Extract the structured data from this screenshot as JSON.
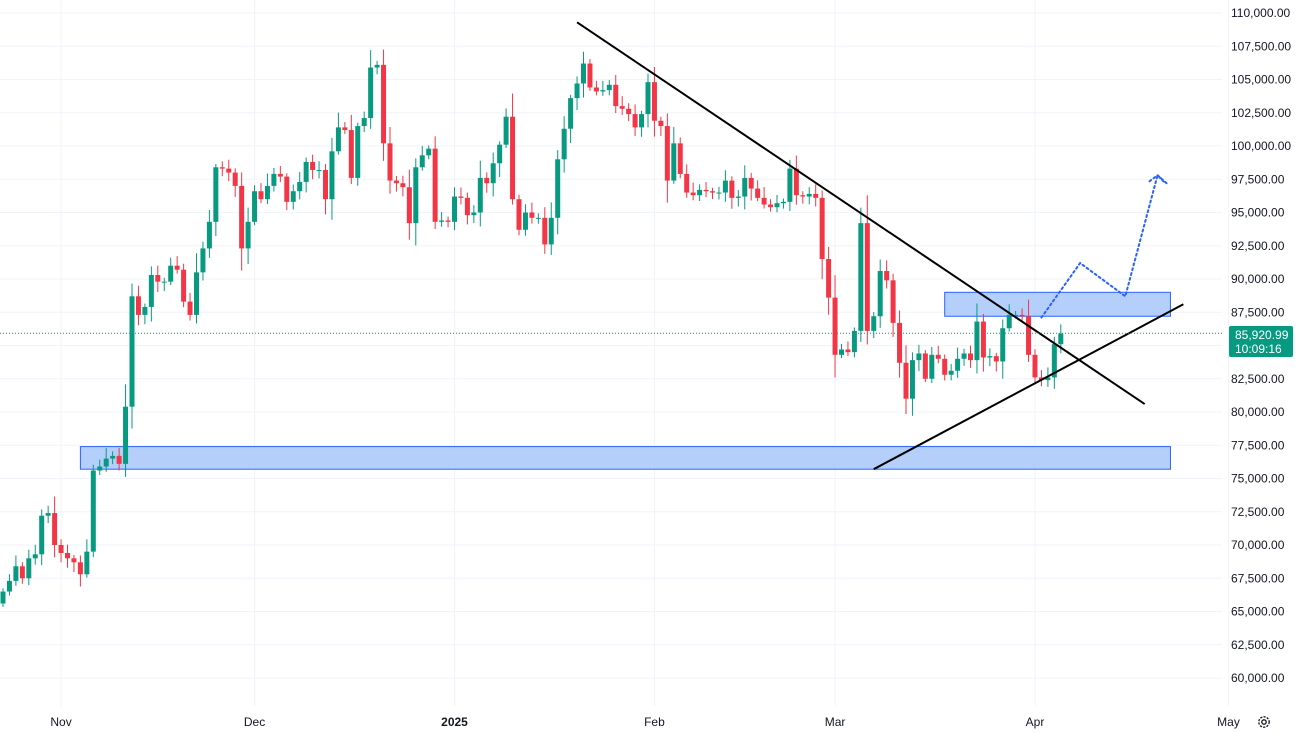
{
  "chart_data": {
    "type": "candlestick",
    "y_range": [
      58500,
      110800
    ],
    "y_ticks": [
      "110,000.00",
      "107,500.00",
      "105,000.00",
      "102,500.00",
      "100,000.00",
      "97,500.00",
      "95,000.00",
      "92,500.00",
      "90,000.00",
      "87,500.00",
      "85,000.00",
      "82,500.00",
      "80,000.00",
      "77,500.00",
      "75,000.00",
      "72,500.00",
      "70,000.00",
      "67,500.00",
      "65,000.00",
      "62,500.00",
      "60,000.00"
    ],
    "x_labels": [
      {
        "label": "Nov",
        "date": "2024-11-01"
      },
      {
        "label": "Dec",
        "date": "2024-12-01"
      },
      {
        "label": "2025",
        "date": "2025-01-01",
        "bold": true
      },
      {
        "label": "Feb",
        "date": "2025-02-01"
      },
      {
        "label": "Mar",
        "date": "2025-03-01"
      },
      {
        "label": "Apr",
        "date": "2025-04-01"
      },
      {
        "label": "May",
        "date": "2025-05-01"
      }
    ],
    "first_date": "2024-10-23",
    "last_price": "85,920.99",
    "countdown": "10:09:16",
    "colors": {
      "up": "#089981",
      "down": "#f23645",
      "zone_fill": "#a8c7fa",
      "zone_border": "#2962ff",
      "line": "#000000",
      "projection": "#2962ff",
      "grid": "#f0f3fa"
    },
    "closes": [
      66500,
      67300,
      68400,
      67500,
      69000,
      69300,
      72200,
      72400,
      70000,
      69400,
      69000,
      68700,
      67800,
      69500,
      75600,
      75900,
      76500,
      76700,
      76100,
      80400,
      88700,
      87300,
      87900,
      90300,
      89800,
      89800,
      91000,
      90700,
      88300,
      87300,
      90500,
      92300,
      94300,
      98400,
      98300,
      98000,
      97000,
      92300,
      94300,
      96600,
      96000,
      97000,
      97900,
      97700,
      95800,
      96600,
      97300,
      98800,
      98200,
      98200,
      96000,
      99600,
      101400,
      101200,
      97600,
      101500,
      102100,
      105900,
      106100,
      100200,
      97400,
      97200,
      96900,
      94200,
      98400,
      99300,
      99800,
      94300,
      94400,
      94300,
      96200,
      96100,
      94800,
      95000,
      97600,
      97200,
      98700,
      100100,
      102200,
      96000,
      93700,
      95000,
      94600,
      94600,
      92600,
      94600,
      99000,
      101300,
      103600,
      104700,
      106200,
      104400,
      104100,
      104200,
      104600,
      103000,
      102800,
      102400,
      101400,
      102400,
      104800,
      101900,
      101500,
      97400,
      100200,
      97900,
      96500,
      96300,
      96700,
      96600,
      96500,
      96500,
      97400,
      96100,
      96200,
      97600,
      96800,
      96100,
      95600,
      95400,
      95700,
      95800,
      98300,
      96300,
      96200,
      96400,
      96100,
      91500,
      88600,
      84300,
      84700,
      84500,
      86100,
      94200,
      86100,
      87200,
      90600,
      89900,
      86700,
      83700,
      81000,
      83900,
      84400,
      82500,
      84300,
      84000,
      82800,
      83100,
      84000,
      84400,
      83900,
      86800,
      84100,
      84200,
      83800,
      86300,
      87300,
      87300,
      87200,
      84300,
      82600,
      82400,
      82600,
      85100,
      85900
    ],
    "zones": [
      {
        "from_date": "2024-11-04",
        "to_date": "2025-04-22",
        "low": 75700,
        "high": 77400
      },
      {
        "from_date": "2025-03-18",
        "to_date": "2025-04-22",
        "low": 87200,
        "high": 89000
      }
    ],
    "lines": [
      {
        "x1": "2025-01-20",
        "y1": 109300,
        "x2": "2025-04-18",
        "y2": 80600
      },
      {
        "x1": "2025-03-07",
        "y1": 75700,
        "x2": "2025-04-24",
        "y2": 88100
      }
    ],
    "projection": [
      {
        "date": "2025-04-02",
        "value": 87100
      },
      {
        "date": "2025-04-08",
        "value": 91200
      },
      {
        "date": "2025-04-15",
        "value": 88700
      },
      {
        "date": "2025-04-20",
        "value": 97800
      },
      {
        "date": "2025-04-21",
        "value": 97300
      }
    ]
  }
}
